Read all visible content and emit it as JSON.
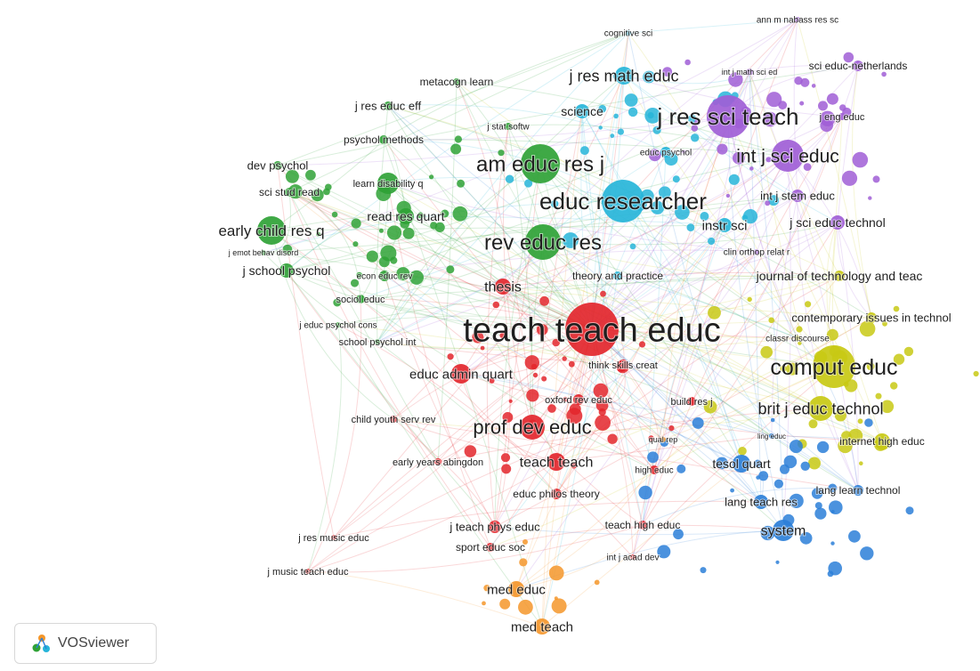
{
  "app": {
    "brand": "VOSviewer",
    "logo_icon": "vosviewer-logo-icon"
  },
  "clusters": {
    "red": "#e3262c",
    "green": "#2fa236",
    "cyan": "#27b5d9",
    "purple": "#a05ed6",
    "yellow": "#c8c914",
    "blue": "#2b7fd8",
    "orange": "#f4962a"
  },
  "nodes": [
    {
      "label": "teach teach educ",
      "cluster": "red",
      "weight": 10
    },
    {
      "label": "prof dev educ",
      "cluster": "red",
      "weight": 6
    },
    {
      "label": "thesis",
      "cluster": "red",
      "weight": 4
    },
    {
      "label": "educ admin quart",
      "cluster": "red",
      "weight": 4
    },
    {
      "label": "teach teach",
      "cluster": "red",
      "weight": 4
    },
    {
      "label": "oxford rev educ",
      "cluster": "red",
      "weight": 2
    },
    {
      "label": "think skills creat",
      "cluster": "red",
      "weight": 2
    },
    {
      "label": "child youth serv rev",
      "cluster": "red",
      "weight": 2
    },
    {
      "label": "early years abingdon",
      "cluster": "red",
      "weight": 2
    },
    {
      "label": "educ philos theory",
      "cluster": "red",
      "weight": 2
    },
    {
      "label": "j teach phys educ",
      "cluster": "red",
      "weight": 3
    },
    {
      "label": "sport educ soc",
      "cluster": "red",
      "weight": 2
    },
    {
      "label": "teach high educ",
      "cluster": "red",
      "weight": 2
    },
    {
      "label": "int j acad dev",
      "cluster": "red",
      "weight": 1
    },
    {
      "label": "j res music educ",
      "cluster": "red",
      "weight": 1
    },
    {
      "label": "j music teach educ",
      "cluster": "red",
      "weight": 1
    },
    {
      "label": "high educ",
      "cluster": "red",
      "weight": 2
    },
    {
      "label": "am educ res j",
      "cluster": "green",
      "weight": 7
    },
    {
      "label": "rev educ res",
      "cluster": "green",
      "weight": 7
    },
    {
      "label": "early child res q",
      "cluster": "green",
      "weight": 5
    },
    {
      "label": "metacogn learn",
      "cluster": "green",
      "weight": 2
    },
    {
      "label": "j res educ eff",
      "cluster": "green",
      "weight": 2
    },
    {
      "label": "psychol methods",
      "cluster": "green",
      "weight": 2
    },
    {
      "label": "dev psychol",
      "cluster": "green",
      "weight": 2
    },
    {
      "label": "sci stud read",
      "cluster": "green",
      "weight": 2
    },
    {
      "label": "learn disability q",
      "cluster": "green",
      "weight": 2
    },
    {
      "label": "read res quart",
      "cluster": "green",
      "weight": 3
    },
    {
      "label": "j emot behav disord",
      "cluster": "green",
      "weight": 1
    },
    {
      "label": "j school psychol",
      "cluster": "green",
      "weight": 3
    },
    {
      "label": "econ educ rev",
      "cluster": "green",
      "weight": 2
    },
    {
      "label": "sociol educ",
      "cluster": "green",
      "weight": 2
    },
    {
      "label": "j educ psychol cons",
      "cluster": "green",
      "weight": 1
    },
    {
      "label": "school psychol int",
      "cluster": "green",
      "weight": 1
    },
    {
      "label": "j stat softw",
      "cluster": "green",
      "weight": 1
    },
    {
      "label": "educ researcher",
      "cluster": "cyan",
      "weight": 9
    },
    {
      "label": "j res math educ",
      "cluster": "cyan",
      "weight": 5
    },
    {
      "label": "science",
      "cluster": "cyan",
      "weight": 3
    },
    {
      "label": "cognitive sci",
      "cluster": "cyan",
      "weight": 1
    },
    {
      "label": "instr sci",
      "cluster": "cyan",
      "weight": 3
    },
    {
      "label": "educ psychol",
      "cluster": "cyan",
      "weight": 2
    },
    {
      "label": "theory and practice",
      "cluster": "cyan",
      "weight": 2
    },
    {
      "label": "j res sci teach",
      "cluster": "purple",
      "weight": 9
    },
    {
      "label": "int j sci educ",
      "cluster": "purple",
      "weight": 7
    },
    {
      "label": "int j stem educ",
      "cluster": "purple",
      "weight": 3
    },
    {
      "label": "j sci educ technol",
      "cluster": "purple",
      "weight": 3
    },
    {
      "label": "sci educ-netherlands",
      "cluster": "purple",
      "weight": 2
    },
    {
      "label": "int j math sci ed",
      "cluster": "purple",
      "weight": 1
    },
    {
      "label": "j eng educ",
      "cluster": "purple",
      "weight": 1
    },
    {
      "label": "ann m nabass res sc",
      "cluster": "purple",
      "weight": 1
    },
    {
      "label": "clin orthop relat r",
      "cluster": "purple",
      "weight": 1
    },
    {
      "label": "comput educ",
      "cluster": "yellow",
      "weight": 8
    },
    {
      "label": "brit j educ technol",
      "cluster": "yellow",
      "weight": 5
    },
    {
      "label": "journal of technology and teac",
      "cluster": "yellow",
      "weight": 3
    },
    {
      "label": "contemporary issues in technol",
      "cluster": "yellow",
      "weight": 3
    },
    {
      "label": "internet high educ",
      "cluster": "yellow",
      "weight": 3
    },
    {
      "label": "classr discourse",
      "cluster": "yellow",
      "weight": 1
    },
    {
      "label": "tesol quart",
      "cluster": "blue",
      "weight": 3
    },
    {
      "label": "lang learn technol",
      "cluster": "blue",
      "weight": 2
    },
    {
      "label": "lang teach res",
      "cluster": "blue",
      "weight": 2
    },
    {
      "label": "system",
      "cluster": "blue",
      "weight": 4
    },
    {
      "label": "ling educ",
      "cluster": "blue",
      "weight": 1
    },
    {
      "label": "qual rep",
      "cluster": "orange",
      "weight": 1
    },
    {
      "label": "med educ",
      "cluster": "orange",
      "weight": 3
    },
    {
      "label": "med teach",
      "cluster": "orange",
      "weight": 3
    },
    {
      "label": "build res j",
      "cluster": "red",
      "weight": 2
    }
  ]
}
